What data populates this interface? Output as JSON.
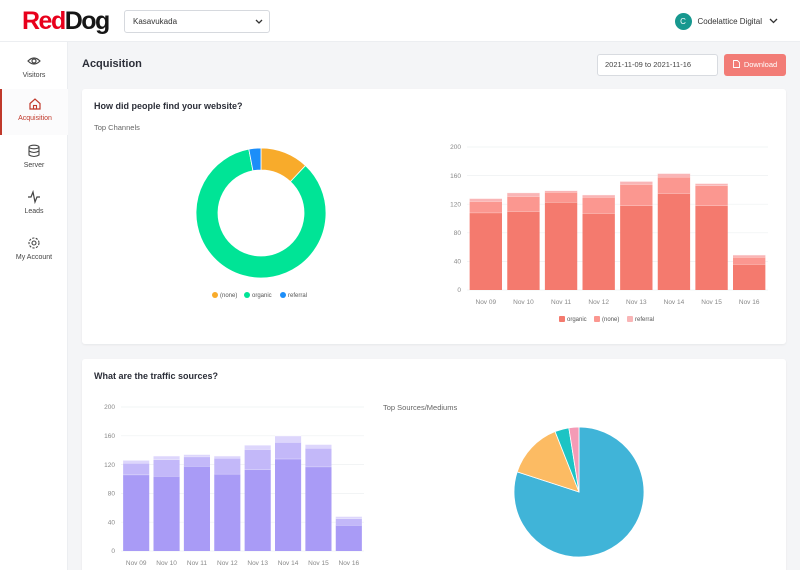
{
  "header": {
    "logo_red": "Red",
    "logo_dark": "Dog",
    "site_select": "Kasavukada",
    "avatar_letter": "C",
    "account_name": "Codelattice Digital"
  },
  "sidebar": {
    "items": [
      {
        "label": "Visitors"
      },
      {
        "label": "Acquisition"
      },
      {
        "label": "Server"
      },
      {
        "label": "Leads"
      },
      {
        "label": "My Account"
      }
    ]
  },
  "page": {
    "title": "Acquisition",
    "date_range": "2021-11-09 to 2021-11-16",
    "download_label": "Download"
  },
  "card1": {
    "title": "How did people find your website?",
    "subtitle": "Top Channels"
  },
  "card2": {
    "title": "What are the traffic sources?",
    "subtitle": "Top Sources/Mediums"
  },
  "colors": {
    "accent": "#c0392b",
    "donut_none": "#f8ab2b",
    "donut_organic": "#00e496",
    "donut_referral": "#1c8ef9",
    "bar_organic": "#f47a6e",
    "bar_none": "#fb9790",
    "bar_referral": "#f9b5b6",
    "purple1": "#a99bf6",
    "purple2": "#c3b8f9",
    "purple3": "#ddd6fc",
    "pie_main": "#40b4d8",
    "pie_orange": "#fcbb63",
    "pie_teal": "#1cc4c4",
    "pie_pink": "#f49bb6"
  },
  "chart_data": [
    {
      "type": "pie",
      "subtype": "donut",
      "title": "Top Channels",
      "labels": [
        "(none)",
        "organic",
        "referral"
      ],
      "values": [
        12,
        85,
        3
      ],
      "legend": "bottom"
    },
    {
      "type": "bar",
      "stacked": true,
      "categories": [
        "Nov 09",
        "Nov 10",
        "Nov 11",
        "Nov 12",
        "Nov 13",
        "Nov 14",
        "Nov 15",
        "Nov 16"
      ],
      "series": [
        {
          "name": "organic",
          "values": [
            108,
            110,
            123,
            107,
            118,
            135,
            118,
            36
          ]
        },
        {
          "name": "(none)",
          "values": [
            16,
            21,
            14,
            23,
            30,
            23,
            28,
            10
          ]
        },
        {
          "name": "referral",
          "values": [
            4,
            5,
            2,
            3,
            4,
            5,
            3,
            3
          ]
        }
      ],
      "ylim": [
        0,
        200
      ],
      "yticks": [
        0,
        40,
        80,
        120,
        160,
        200
      ],
      "legend": "bottom"
    },
    {
      "type": "bar",
      "stacked": true,
      "categories": [
        "Nov 09",
        "Nov 10",
        "Nov 11",
        "Nov 12",
        "Nov 13",
        "Nov 14",
        "Nov 15",
        "Nov 16"
      ],
      "series": [
        {
          "values": [
            106,
            104,
            118,
            107,
            113,
            128,
            117,
            36
          ]
        },
        {
          "values": [
            16,
            23,
            13,
            22,
            28,
            23,
            26,
            9
          ]
        },
        {
          "values": [
            4,
            5,
            3,
            3,
            6,
            9,
            5,
            3
          ]
        }
      ],
      "ylim": [
        0,
        200
      ],
      "yticks": [
        0,
        40,
        80,
        120,
        160,
        200
      ]
    },
    {
      "type": "pie",
      "title": "Top Sources/Mediums",
      "values": [
        80,
        14,
        3.5,
        2.5
      ]
    }
  ]
}
